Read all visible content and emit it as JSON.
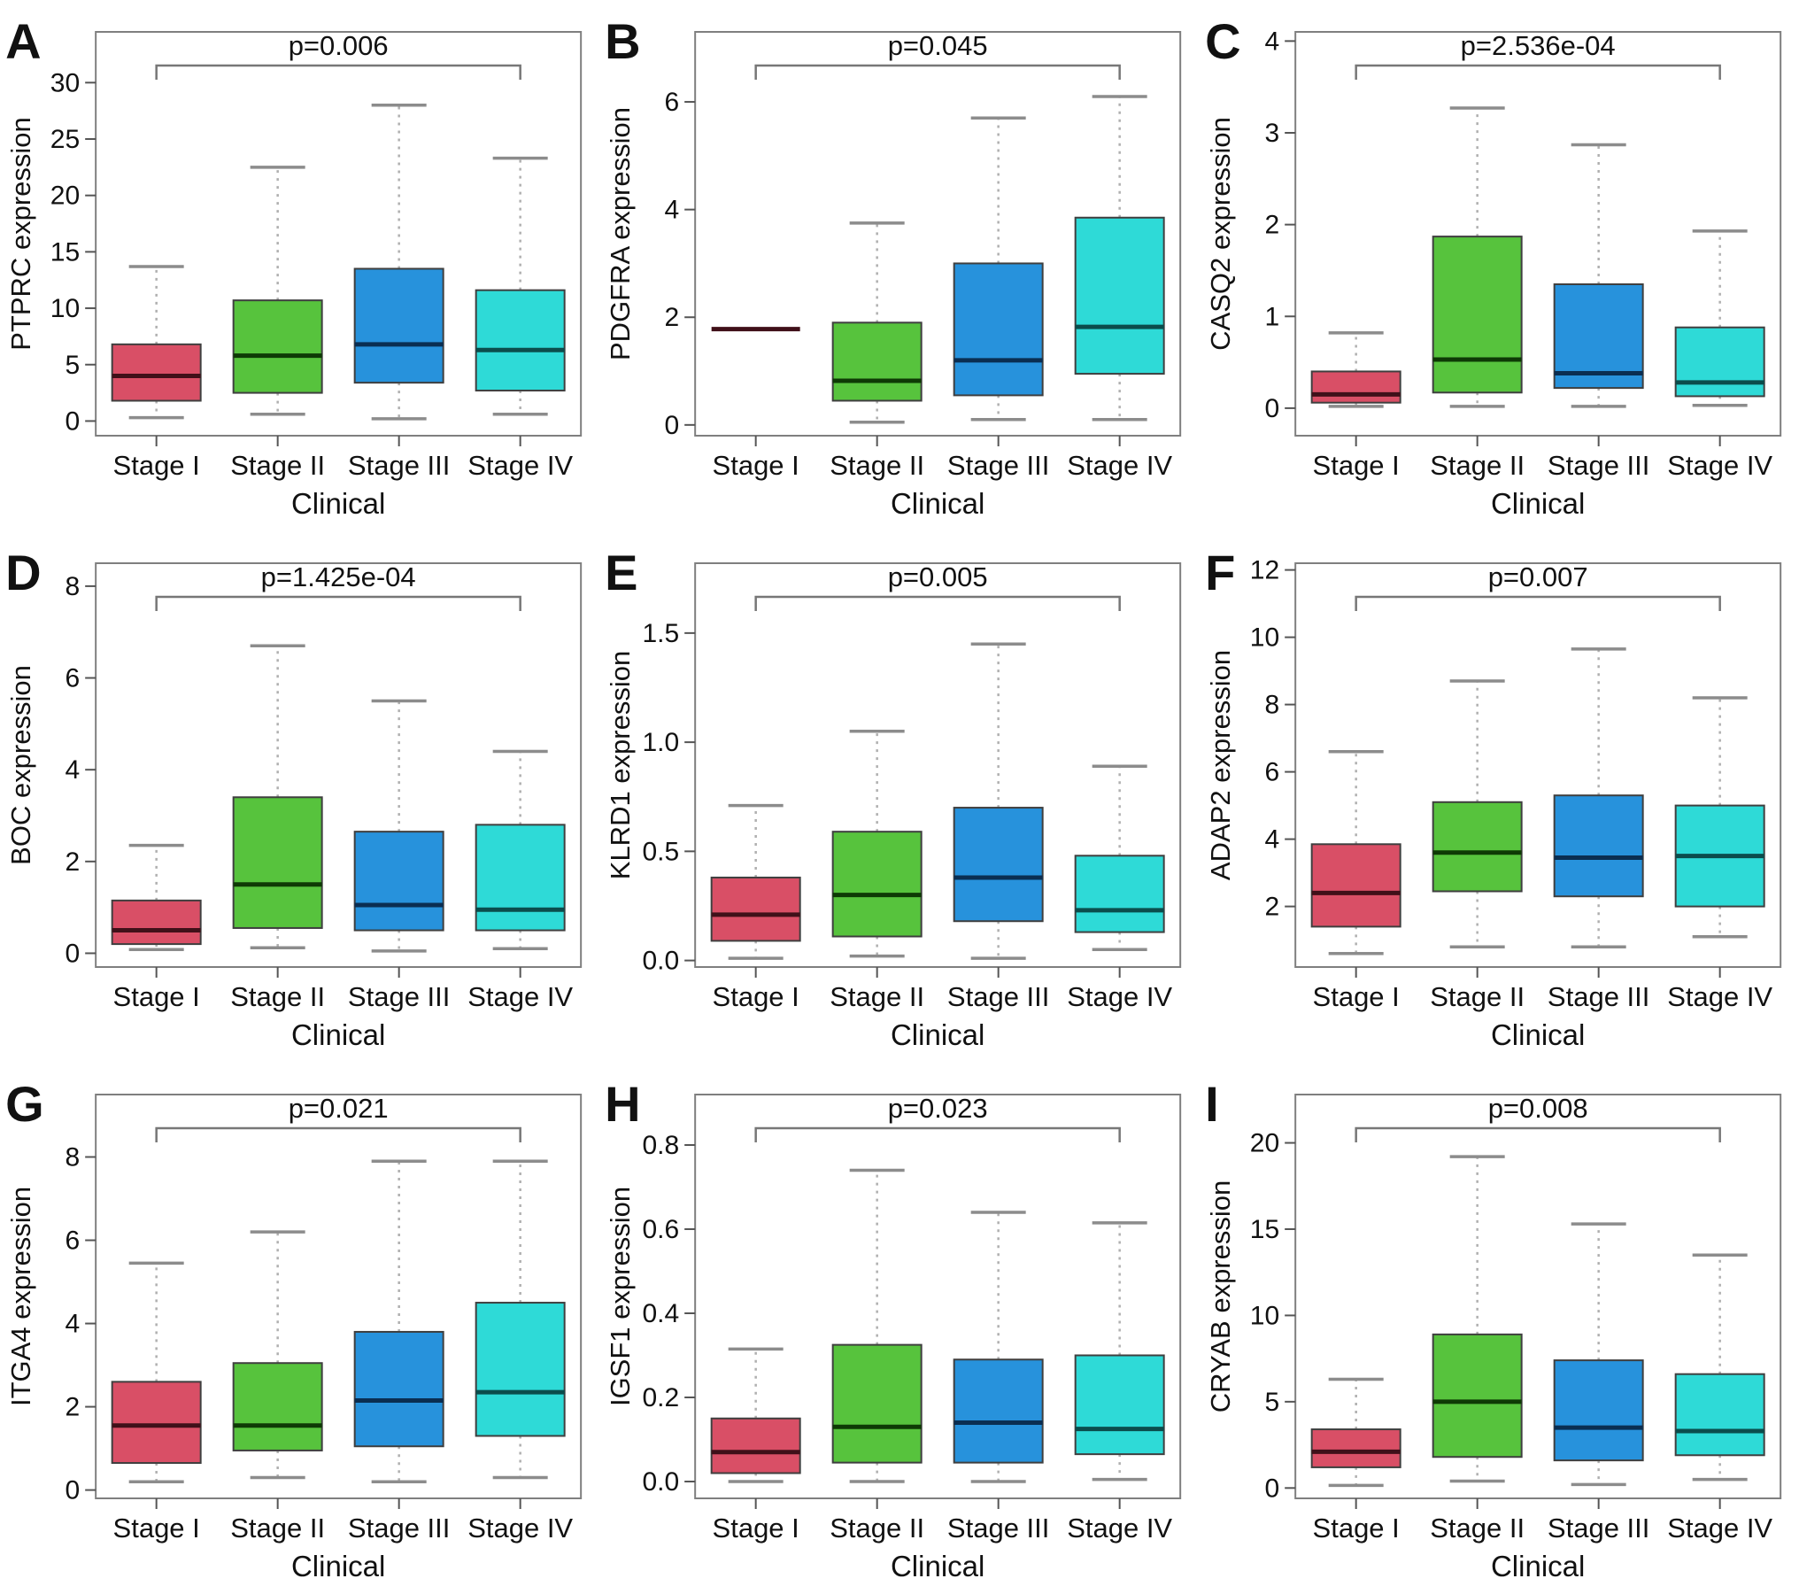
{
  "figure": {
    "xlabel": "Clinical",
    "stage_labels": [
      "Stage I",
      "Stage II",
      "Stage III",
      "Stage IV"
    ],
    "stage_colors": [
      "#d94f66",
      "#57c33d",
      "#2792dc",
      "#2edad7"
    ],
    "stage_median_colors": [
      "#401019",
      "#0e3a05",
      "#0a2e52",
      "#0b4d4c"
    ],
    "box_border_color": "#3f3f3f",
    "axis_color": "#7f7f7f",
    "whisker_color": "#b0b0b0",
    "cap_color": "#8c8c8c",
    "bracket_color": "#777777"
  },
  "chart_data": [
    {
      "type": "box",
      "letter": "A",
      "ylabel": "PTPRC expression",
      "pvalue": "p=0.006",
      "xlabel": "Clinical",
      "categories": [
        "Stage I",
        "Stage II",
        "Stage III",
        "Stage IV"
      ],
      "ylim": [
        -1.3,
        34.5
      ],
      "yticks": {
        "values": [
          0,
          5,
          10,
          15,
          20,
          25,
          30
        ],
        "labels": [
          "0",
          "5",
          "10",
          "15",
          "20",
          "25",
          "30"
        ]
      },
      "boxes": [
        {
          "low": 0.3,
          "q1": 1.8,
          "med": 4.0,
          "q3": 6.8,
          "high": 13.7
        },
        {
          "low": 0.6,
          "q1": 2.5,
          "med": 5.8,
          "q3": 10.7,
          "high": 22.5
        },
        {
          "low": 0.2,
          "q1": 3.4,
          "med": 6.8,
          "q3": 13.5,
          "high": 28.0
        },
        {
          "low": 0.6,
          "q1": 2.7,
          "med": 6.3,
          "q3": 11.6,
          "high": 23.3
        }
      ]
    },
    {
      "type": "box",
      "letter": "B",
      "ylabel": "PDGFRA expression",
      "pvalue": "p=0.045",
      "xlabel": "Clinical",
      "categories": [
        "Stage I",
        "Stage II",
        "Stage III",
        "Stage IV"
      ],
      "ylim": [
        -0.2,
        7.3
      ],
      "yticks": {
        "values": [
          0,
          2,
          4,
          6
        ],
        "labels": [
          "0",
          "2",
          "4",
          "6"
        ]
      },
      "boxes": [
        {
          "low": 1.78,
          "q1": 1.78,
          "med": 1.78,
          "q3": 1.78,
          "high": 1.78
        },
        {
          "low": 0.05,
          "q1": 0.45,
          "med": 0.82,
          "q3": 1.9,
          "high": 3.75
        },
        {
          "low": 0.1,
          "q1": 0.55,
          "med": 1.2,
          "q3": 3.0,
          "high": 5.7
        },
        {
          "low": 0.1,
          "q1": 0.95,
          "med": 1.82,
          "q3": 3.85,
          "high": 6.1
        }
      ]
    },
    {
      "type": "box",
      "letter": "C",
      "ylabel": "CASQ2 expression",
      "pvalue": "p=2.536e-04",
      "xlabel": "Clinical",
      "categories": [
        "Stage I",
        "Stage II",
        "Stage III",
        "Stage IV"
      ],
      "ylim": [
        -0.3,
        4.1
      ],
      "yticks": {
        "values": [
          0,
          1,
          2,
          3,
          4
        ],
        "labels": [
          "0",
          "1",
          "2",
          "3",
          "4"
        ]
      },
      "boxes": [
        {
          "low": 0.02,
          "q1": 0.06,
          "med": 0.15,
          "q3": 0.4,
          "high": 0.82
        },
        {
          "low": 0.02,
          "q1": 0.17,
          "med": 0.53,
          "q3": 1.87,
          "high": 3.27
        },
        {
          "low": 0.02,
          "q1": 0.22,
          "med": 0.38,
          "q3": 1.35,
          "high": 2.87
        },
        {
          "low": 0.03,
          "q1": 0.13,
          "med": 0.28,
          "q3": 0.88,
          "high": 1.93
        }
      ]
    },
    {
      "type": "box",
      "letter": "D",
      "ylabel": "BOC expression",
      "pvalue": "p=1.425e-04",
      "xlabel": "Clinical",
      "categories": [
        "Stage I",
        "Stage II",
        "Stage III",
        "Stage IV"
      ],
      "ylim": [
        -0.3,
        8.5
      ],
      "yticks": {
        "values": [
          0,
          2,
          4,
          6,
          8
        ],
        "labels": [
          "0",
          "2",
          "4",
          "6",
          "8"
        ]
      },
      "boxes": [
        {
          "low": 0.08,
          "q1": 0.2,
          "med": 0.5,
          "q3": 1.15,
          "high": 2.35
        },
        {
          "low": 0.12,
          "q1": 0.55,
          "med": 1.5,
          "q3": 3.4,
          "high": 6.7
        },
        {
          "low": 0.05,
          "q1": 0.5,
          "med": 1.05,
          "q3": 2.65,
          "high": 5.5
        },
        {
          "low": 0.1,
          "q1": 0.5,
          "med": 0.95,
          "q3": 2.8,
          "high": 4.4
        }
      ]
    },
    {
      "type": "box",
      "letter": "E",
      "ylabel": "KLRD1 expression",
      "pvalue": "p=0.005",
      "xlabel": "Clinical",
      "categories": [
        "Stage I",
        "Stage II",
        "Stage III",
        "Stage IV"
      ],
      "ylim": [
        -0.03,
        1.82
      ],
      "yticks": {
        "values": [
          0.0,
          0.5,
          1.0,
          1.5
        ],
        "labels": [
          "0.0",
          "0.5",
          "1.0",
          "1.5"
        ]
      },
      "boxes": [
        {
          "low": 0.01,
          "q1": 0.09,
          "med": 0.21,
          "q3": 0.38,
          "high": 0.71
        },
        {
          "low": 0.02,
          "q1": 0.11,
          "med": 0.3,
          "q3": 0.59,
          "high": 1.05
        },
        {
          "low": 0.01,
          "q1": 0.18,
          "med": 0.38,
          "q3": 0.7,
          "high": 1.45
        },
        {
          "low": 0.05,
          "q1": 0.13,
          "med": 0.23,
          "q3": 0.48,
          "high": 0.89
        }
      ]
    },
    {
      "type": "box",
      "letter": "F",
      "ylabel": "ADAP2 expression",
      "pvalue": "p=0.007",
      "xlabel": "Clinical",
      "categories": [
        "Stage I",
        "Stage II",
        "Stage III",
        "Stage IV"
      ],
      "ylim": [
        0.2,
        12.2
      ],
      "yticks": {
        "values": [
          2,
          4,
          6,
          8,
          10,
          12
        ],
        "labels": [
          "2",
          "4",
          "6",
          "8",
          "10",
          "12"
        ]
      },
      "boxes": [
        {
          "low": 0.6,
          "q1": 1.4,
          "med": 2.4,
          "q3": 3.85,
          "high": 6.6
        },
        {
          "low": 0.8,
          "q1": 2.45,
          "med": 3.6,
          "q3": 5.1,
          "high": 8.7
        },
        {
          "low": 0.8,
          "q1": 2.3,
          "med": 3.45,
          "q3": 5.3,
          "high": 9.65
        },
        {
          "low": 1.1,
          "q1": 2.0,
          "med": 3.5,
          "q3": 5.0,
          "high": 8.2
        }
      ]
    },
    {
      "type": "box",
      "letter": "G",
      "ylabel": "ITGA4 expression",
      "pvalue": "p=0.021",
      "xlabel": "Clinical",
      "categories": [
        "Stage I",
        "Stage II",
        "Stage III",
        "Stage IV"
      ],
      "ylim": [
        -0.2,
        9.5
      ],
      "yticks": {
        "values": [
          0,
          2,
          4,
          6,
          8
        ],
        "labels": [
          "0",
          "2",
          "4",
          "6",
          "8"
        ]
      },
      "boxes": [
        {
          "low": 0.2,
          "q1": 0.65,
          "med": 1.55,
          "q3": 2.6,
          "high": 5.45
        },
        {
          "low": 0.3,
          "q1": 0.95,
          "med": 1.55,
          "q3": 3.05,
          "high": 6.2
        },
        {
          "low": 0.2,
          "q1": 1.05,
          "med": 2.15,
          "q3": 3.8,
          "high": 7.9
        },
        {
          "low": 0.3,
          "q1": 1.3,
          "med": 2.35,
          "q3": 4.5,
          "high": 7.9
        }
      ]
    },
    {
      "type": "box",
      "letter": "H",
      "ylabel": "IGSF1 expression",
      "pvalue": "p=0.023",
      "xlabel": "Clinical",
      "categories": [
        "Stage I",
        "Stage II",
        "Stage III",
        "Stage IV"
      ],
      "ylim": [
        -0.04,
        0.92
      ],
      "yticks": {
        "values": [
          0.0,
          0.2,
          0.4,
          0.6,
          0.8
        ],
        "labels": [
          "0.0",
          "0.2",
          "0.4",
          "0.6",
          "0.8"
        ]
      },
      "boxes": [
        {
          "low": 0.0,
          "q1": 0.02,
          "med": 0.07,
          "q3": 0.15,
          "high": 0.315
        },
        {
          "low": 0.0,
          "q1": 0.045,
          "med": 0.13,
          "q3": 0.325,
          "high": 0.74
        },
        {
          "low": 0.0,
          "q1": 0.045,
          "med": 0.14,
          "q3": 0.29,
          "high": 0.64
        },
        {
          "low": 0.005,
          "q1": 0.065,
          "med": 0.125,
          "q3": 0.3,
          "high": 0.615
        }
      ]
    },
    {
      "type": "box",
      "letter": "I",
      "ylabel": "CRYAB expression",
      "pvalue": "p=0.008",
      "xlabel": "Clinical",
      "categories": [
        "Stage I",
        "Stage II",
        "Stage III",
        "Stage IV"
      ],
      "ylim": [
        -0.6,
        22.8
      ],
      "yticks": {
        "values": [
          0,
          5,
          10,
          15,
          20
        ],
        "labels": [
          "0",
          "5",
          "10",
          "15",
          "20"
        ]
      },
      "boxes": [
        {
          "low": 0.15,
          "q1": 1.2,
          "med": 2.1,
          "q3": 3.4,
          "high": 6.3
        },
        {
          "low": 0.4,
          "q1": 1.8,
          "med": 5.0,
          "q3": 8.9,
          "high": 19.2
        },
        {
          "low": 0.2,
          "q1": 1.6,
          "med": 3.5,
          "q3": 7.4,
          "high": 15.3
        },
        {
          "low": 0.5,
          "q1": 1.9,
          "med": 3.3,
          "q3": 6.6,
          "high": 13.5
        }
      ]
    }
  ]
}
